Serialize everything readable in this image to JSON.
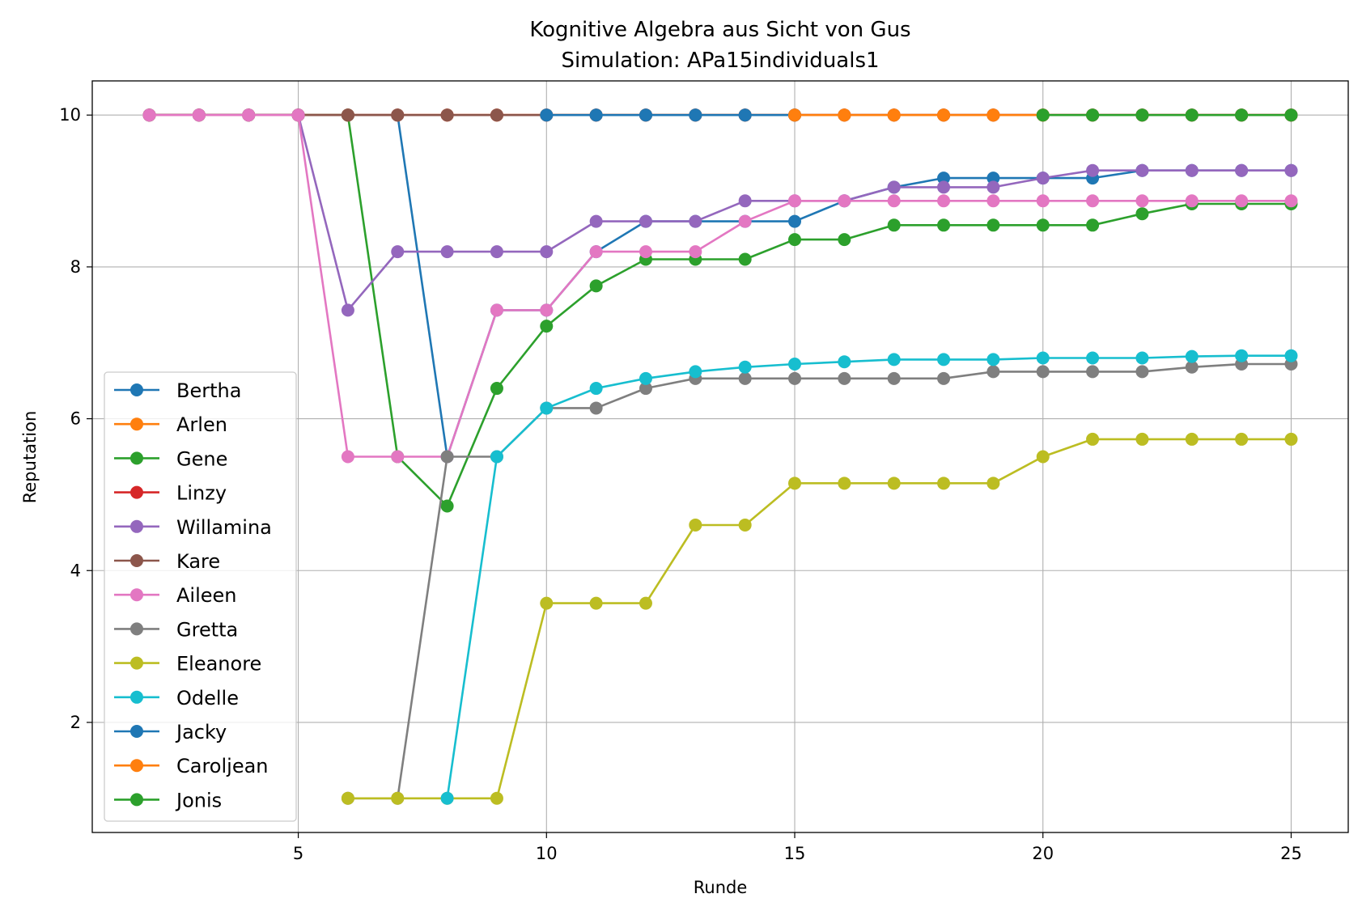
{
  "chart_data": {
    "type": "line",
    "title": "Kognitive Algebra aus Sicht von Gus",
    "subtitle": "Simulation: APa15individuals1",
    "xlabel": "Runde",
    "ylabel": "Reputation",
    "xlim": [
      0.85,
      26.15
    ],
    "ylim": [
      0.55,
      10.45
    ],
    "xticks": [
      5,
      10,
      15,
      20,
      25
    ],
    "yticks": [
      2,
      4,
      6,
      8,
      10
    ],
    "grid": true,
    "legend_position": "lower-left",
    "series": [
      {
        "name": "Bertha",
        "color": "#1f77b4",
        "x": [
          2,
          3,
          4,
          5,
          6,
          7,
          8,
          9,
          10,
          11,
          12,
          13,
          14,
          15,
          16,
          17,
          18,
          19,
          20,
          21,
          22,
          23,
          24,
          25
        ],
        "y": [
          10,
          10,
          10,
          10,
          10,
          10,
          5.5,
          7.43,
          7.43,
          8.2,
          8.6,
          8.6,
          8.6,
          8.6,
          8.87,
          9.05,
          9.17,
          9.17,
          9.17,
          9.17,
          9.27,
          9.27,
          9.27,
          9.27
        ]
      },
      {
        "name": "Arlen",
        "color": "#ff7f0e",
        "x": [
          2,
          3,
          4,
          5,
          6,
          7,
          8,
          9,
          10,
          11,
          12,
          13,
          14,
          15,
          16,
          17,
          18,
          19,
          20,
          21,
          22,
          23,
          24,
          25
        ],
        "y": [
          10,
          10,
          10,
          10,
          10,
          10,
          10,
          10,
          10,
          10,
          10,
          10,
          10,
          10,
          10,
          10,
          10,
          10,
          10,
          10,
          10,
          10,
          10,
          10
        ]
      },
      {
        "name": "Gene",
        "color": "#2ca02c",
        "x": [
          2,
          3,
          4,
          5,
          6,
          7,
          8,
          9,
          10,
          11,
          12,
          13,
          14,
          15,
          16,
          17,
          18,
          19,
          20,
          21,
          22,
          23,
          24,
          25
        ],
        "y": [
          10,
          10,
          10,
          10,
          10,
          5.5,
          4.85,
          6.4,
          7.22,
          7.75,
          8.1,
          8.1,
          8.1,
          8.36,
          8.36,
          8.55,
          8.55,
          8.55,
          8.55,
          8.55,
          8.7,
          8.83,
          8.83,
          8.83
        ]
      },
      {
        "name": "Linzy",
        "color": "#d62728",
        "x": [
          2,
          3,
          4,
          5,
          6,
          7,
          8,
          9,
          10,
          11,
          12,
          13,
          14,
          15,
          16,
          17,
          18,
          19,
          20,
          21,
          22,
          23,
          24,
          25
        ],
        "y": [
          10,
          10,
          10,
          10,
          10,
          10,
          10,
          10,
          10,
          10,
          10,
          10,
          10,
          10,
          10,
          10,
          10,
          10,
          10,
          10,
          10,
          10,
          10,
          10
        ]
      },
      {
        "name": "Willamina",
        "color": "#9467bd",
        "x": [
          2,
          3,
          4,
          5,
          6,
          7,
          8,
          9,
          10,
          11,
          12,
          13,
          14,
          15,
          16,
          17,
          18,
          19,
          20,
          21,
          22,
          23,
          24,
          25
        ],
        "y": [
          10,
          10,
          10,
          10,
          7.43,
          8.2,
          8.2,
          8.2,
          8.2,
          8.6,
          8.6,
          8.6,
          8.87,
          8.87,
          8.87,
          9.05,
          9.05,
          9.05,
          9.17,
          9.27,
          9.27,
          9.27,
          9.27,
          9.27
        ]
      },
      {
        "name": "Kare",
        "color": "#8c564b",
        "x": [
          2,
          3,
          4,
          5,
          6,
          7,
          8,
          9,
          10,
          11,
          12,
          13,
          14,
          15,
          16,
          17,
          18,
          19,
          20,
          21,
          22,
          23,
          24,
          25
        ],
        "y": [
          10,
          10,
          10,
          10,
          10,
          10,
          10,
          10,
          10,
          10,
          10,
          10,
          10,
          10,
          10,
          10,
          10,
          10,
          10,
          10,
          10,
          10,
          10,
          10
        ]
      },
      {
        "name": "Aileen",
        "color": "#e377c2",
        "x": [
          2,
          3,
          4,
          5,
          6,
          7,
          8,
          9,
          10,
          11,
          12,
          13,
          14,
          15,
          16,
          17,
          18,
          19,
          20,
          21,
          22,
          23,
          24,
          25
        ],
        "y": [
          10,
          10,
          10,
          10,
          5.5,
          5.5,
          5.5,
          7.43,
          7.43,
          8.2,
          8.2,
          8.2,
          8.6,
          8.87,
          8.87,
          8.87,
          8.87,
          8.87,
          8.87,
          8.87,
          8.87,
          8.87,
          8.87,
          8.87
        ]
      },
      {
        "name": "Gretta",
        "color": "#7f7f7f",
        "x": [
          6,
          7,
          8,
          9,
          10,
          11,
          12,
          13,
          14,
          15,
          16,
          17,
          18,
          19,
          20,
          21,
          22,
          23,
          24,
          25
        ],
        "y": [
          1,
          1,
          5.5,
          5.5,
          6.14,
          6.14,
          6.4,
          6.53,
          6.53,
          6.53,
          6.53,
          6.53,
          6.53,
          6.62,
          6.62,
          6.62,
          6.62,
          6.68,
          6.72,
          6.72
        ]
      },
      {
        "name": "Eleanore",
        "color": "#bcbd22",
        "x": [
          6,
          7,
          8,
          9,
          10,
          11,
          12,
          13,
          14,
          15,
          16,
          17,
          18,
          19,
          20,
          21,
          22,
          23,
          24,
          25
        ],
        "y": [
          1,
          1,
          1,
          1,
          3.57,
          3.57,
          3.57,
          4.6,
          4.6,
          5.15,
          5.15,
          5.15,
          5.15,
          5.15,
          5.5,
          5.73,
          5.73,
          5.73,
          5.73,
          5.73
        ]
      },
      {
        "name": "Odelle",
        "color": "#17becf",
        "x": [
          8,
          9,
          10,
          11,
          12,
          13,
          14,
          15,
          16,
          17,
          18,
          19,
          20,
          21,
          22,
          23,
          24,
          25
        ],
        "y": [
          1,
          5.5,
          6.14,
          6.4,
          6.53,
          6.62,
          6.68,
          6.72,
          6.75,
          6.78,
          6.78,
          6.78,
          6.8,
          6.8,
          6.8,
          6.82,
          6.83,
          6.83
        ]
      },
      {
        "name": "Jacky",
        "color": "#1f77b4",
        "x": [
          10,
          11,
          12,
          13,
          14,
          15
        ],
        "y": [
          10,
          10,
          10,
          10,
          10,
          10
        ]
      },
      {
        "name": "Caroljean",
        "color": "#ff7f0e",
        "x": [
          15,
          16,
          17,
          18,
          19,
          20
        ],
        "y": [
          10,
          10,
          10,
          10,
          10,
          10
        ]
      },
      {
        "name": "Jonis",
        "color": "#2ca02c",
        "x": [
          20,
          21,
          22,
          23,
          24,
          25
        ],
        "y": [
          10,
          10,
          10,
          10,
          10,
          10
        ]
      }
    ]
  }
}
